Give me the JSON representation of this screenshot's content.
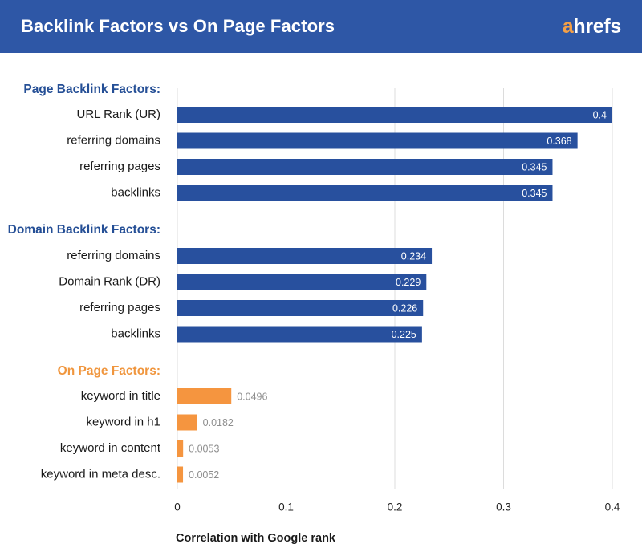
{
  "header": {
    "title": "Backlink Factors vs On Page Factors",
    "logo_first_letter": "a",
    "logo_rest": "hrefs"
  },
  "colors": {
    "header_bg": "#2e57a6",
    "group_title_blue": "#254f96",
    "group_title_orange": "#f0963e",
    "bar_blue": "#28509e",
    "bar_orange": "#f5953f",
    "gridline": "#dcdcdc"
  },
  "chart_data": {
    "type": "bar",
    "orientation": "horizontal",
    "xlabel": "Correlation with Google rank",
    "xlim": [
      0,
      0.4
    ],
    "xticks": [
      "0",
      "0.1",
      "0.2",
      "0.3",
      "0.4"
    ],
    "xtick_values": [
      0,
      0.1,
      0.2,
      0.3,
      0.4
    ],
    "grid": true,
    "groups": [
      {
        "title": "Page Backlink Factors:",
        "color": "blue",
        "categories": [
          "URL Rank (UR)",
          "referring domains",
          "referring pages",
          "backlinks"
        ],
        "values": [
          0.4,
          0.368,
          0.345,
          0.345
        ],
        "labels": [
          "0.4",
          "0.368",
          "0.345",
          "0.345"
        ]
      },
      {
        "title": "Domain Backlink Factors:",
        "color": "blue",
        "categories": [
          "referring domains",
          "Domain Rank (DR)",
          "referring pages",
          "backlinks"
        ],
        "values": [
          0.234,
          0.229,
          0.226,
          0.225
        ],
        "labels": [
          "0.234",
          "0.229",
          "0.226",
          "0.225"
        ]
      },
      {
        "title": "On Page Factors:",
        "color": "orange",
        "categories": [
          "keyword in title",
          "keyword in h1",
          "keyword in content",
          "keyword in meta desc."
        ],
        "values": [
          0.0496,
          0.0182,
          0.0053,
          0.0052
        ],
        "labels": [
          "0.0496",
          "0.0182",
          "0.0053",
          "0.0052"
        ]
      }
    ]
  }
}
